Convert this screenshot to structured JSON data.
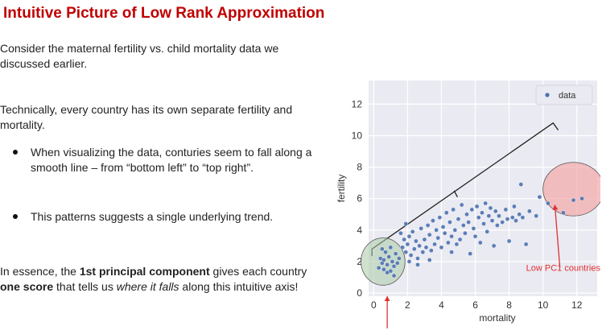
{
  "slide": {
    "title": "Intuitive Picture of Low Rank Approximation",
    "p1": "Consider the maternal fertility vs. child mortality data we discussed earlier.",
    "p2": "Technically, every country has its own separate fertility and mortality.",
    "bullets": [
      "When visualizing the data, conturies seem to fall along a smooth line – from “bottom left” to “top right”.",
      "This patterns suggests a single underlying trend."
    ],
    "conclusion": {
      "pre": "In essence, the ",
      "bold1": "1st principal component",
      "mid": " gives each country ",
      "bold2": "one score",
      "mid2": " that tells us ",
      "ital": "where it falls",
      "post": " along this intuitive axis!"
    }
  },
  "chart_data": {
    "type": "scatter",
    "xlabel": "mortality",
    "ylabel": "fertility",
    "xlim": [
      -0.3,
      13.2
    ],
    "ylim": [
      -0.2,
      13.5
    ],
    "xticks": [
      0,
      2,
      4,
      6,
      8,
      10,
      12
    ],
    "yticks": [
      0,
      2,
      4,
      6,
      8,
      10,
      12
    ],
    "grid": true,
    "background": "#eaeaf2",
    "point_color": "#4c72b0",
    "legend": {
      "label": "data",
      "position": "top-right"
    },
    "annotations": {
      "low_label": "Low PC1 countries",
      "low_label_color": "#e03030",
      "low_ellipse_color": "#a9cba6",
      "high_ellipse_color": "#f2a8a8"
    },
    "points": [
      [
        0.3,
        1.6
      ],
      [
        0.4,
        2.2
      ],
      [
        0.5,
        1.9
      ],
      [
        0.6,
        1.5
      ],
      [
        0.7,
        2.6
      ],
      [
        0.8,
        1.8
      ],
      [
        0.9,
        2.3
      ],
      [
        1.0,
        1.4
      ],
      [
        1.1,
        2.0
      ],
      [
        1.2,
        1.7
      ],
      [
        1.3,
        2.5
      ],
      [
        1.4,
        1.9
      ],
      [
        0.5,
        2.8
      ],
      [
        0.8,
        1.3
      ],
      [
        1.0,
        2.9
      ],
      [
        1.2,
        1.1
      ],
      [
        0.6,
        2.1
      ],
      [
        1.5,
        2.2
      ],
      [
        1.6,
        3.8
      ],
      [
        1.7,
        2.9
      ],
      [
        1.8,
        3.4
      ],
      [
        1.9,
        2.6
      ],
      [
        2.0,
        3.1
      ],
      [
        2.1,
        3.6
      ],
      [
        2.2,
        2.4
      ],
      [
        2.3,
        3.9
      ],
      [
        2.4,
        2.8
      ],
      [
        2.5,
        3.3
      ],
      [
        2.6,
        2.2
      ],
      [
        2.7,
        3.0
      ],
      [
        2.8,
        4.1
      ],
      [
        2.9,
        2.6
      ],
      [
        3.0,
        3.4
      ],
      [
        3.1,
        2.9
      ],
      [
        3.2,
        4.3
      ],
      [
        3.3,
        3.7
      ],
      [
        3.4,
        2.7
      ],
      [
        3.5,
        4.6
      ],
      [
        3.6,
        3.1
      ],
      [
        3.7,
        4.0
      ],
      [
        3.8,
        3.5
      ],
      [
        3.9,
        4.8
      ],
      [
        4.0,
        2.9
      ],
      [
        4.1,
        4.2
      ],
      [
        4.2,
        3.8
      ],
      [
        4.3,
        5.1
      ],
      [
        4.4,
        3.2
      ],
      [
        4.5,
        4.5
      ],
      [
        4.6,
        3.6
      ],
      [
        4.7,
        5.3
      ],
      [
        4.8,
        4.0
      ],
      [
        4.9,
        3.1
      ],
      [
        5.0,
        4.7
      ],
      [
        5.1,
        3.4
      ],
      [
        5.2,
        5.6
      ],
      [
        5.3,
        4.3
      ],
      [
        5.4,
        3.8
      ],
      [
        5.5,
        5.0
      ],
      [
        5.6,
        4.5
      ],
      [
        5.7,
        2.5
      ],
      [
        5.8,
        5.3
      ],
      [
        5.9,
        4.1
      ],
      [
        6.0,
        3.6
      ],
      [
        6.1,
        5.5
      ],
      [
        6.2,
        4.8
      ],
      [
        6.3,
        3.2
      ],
      [
        6.4,
        5.1
      ],
      [
        6.5,
        4.4
      ],
      [
        6.6,
        5.7
      ],
      [
        6.7,
        3.9
      ],
      [
        6.8,
        4.9
      ],
      [
        6.9,
        5.4
      ],
      [
        7.0,
        4.6
      ],
      [
        7.1,
        3.0
      ],
      [
        7.2,
        5.2
      ],
      [
        7.3,
        4.3
      ],
      [
        7.4,
        4.9
      ],
      [
        7.6,
        4.5
      ],
      [
        7.8,
        5.3
      ],
      [
        7.9,
        4.7
      ],
      [
        8.0,
        3.3
      ],
      [
        8.2,
        4.8
      ],
      [
        8.3,
        5.5
      ],
      [
        8.4,
        4.6
      ],
      [
        8.6,
        5.0
      ],
      [
        8.7,
        6.9
      ],
      [
        8.8,
        4.8
      ],
      [
        9.0,
        3.1
      ],
      [
        9.2,
        5.2
      ],
      [
        9.6,
        4.9
      ],
      [
        9.8,
        6.1
      ],
      [
        10.3,
        5.7
      ],
      [
        11.2,
        5.1
      ],
      [
        11.8,
        5.9
      ],
      [
        12.3,
        6.0
      ],
      [
        2.1,
        2.0
      ],
      [
        2.6,
        1.8
      ],
      [
        3.3,
        2.1
      ],
      [
        4.6,
        2.6
      ],
      [
        1.9,
        4.4
      ]
    ]
  }
}
